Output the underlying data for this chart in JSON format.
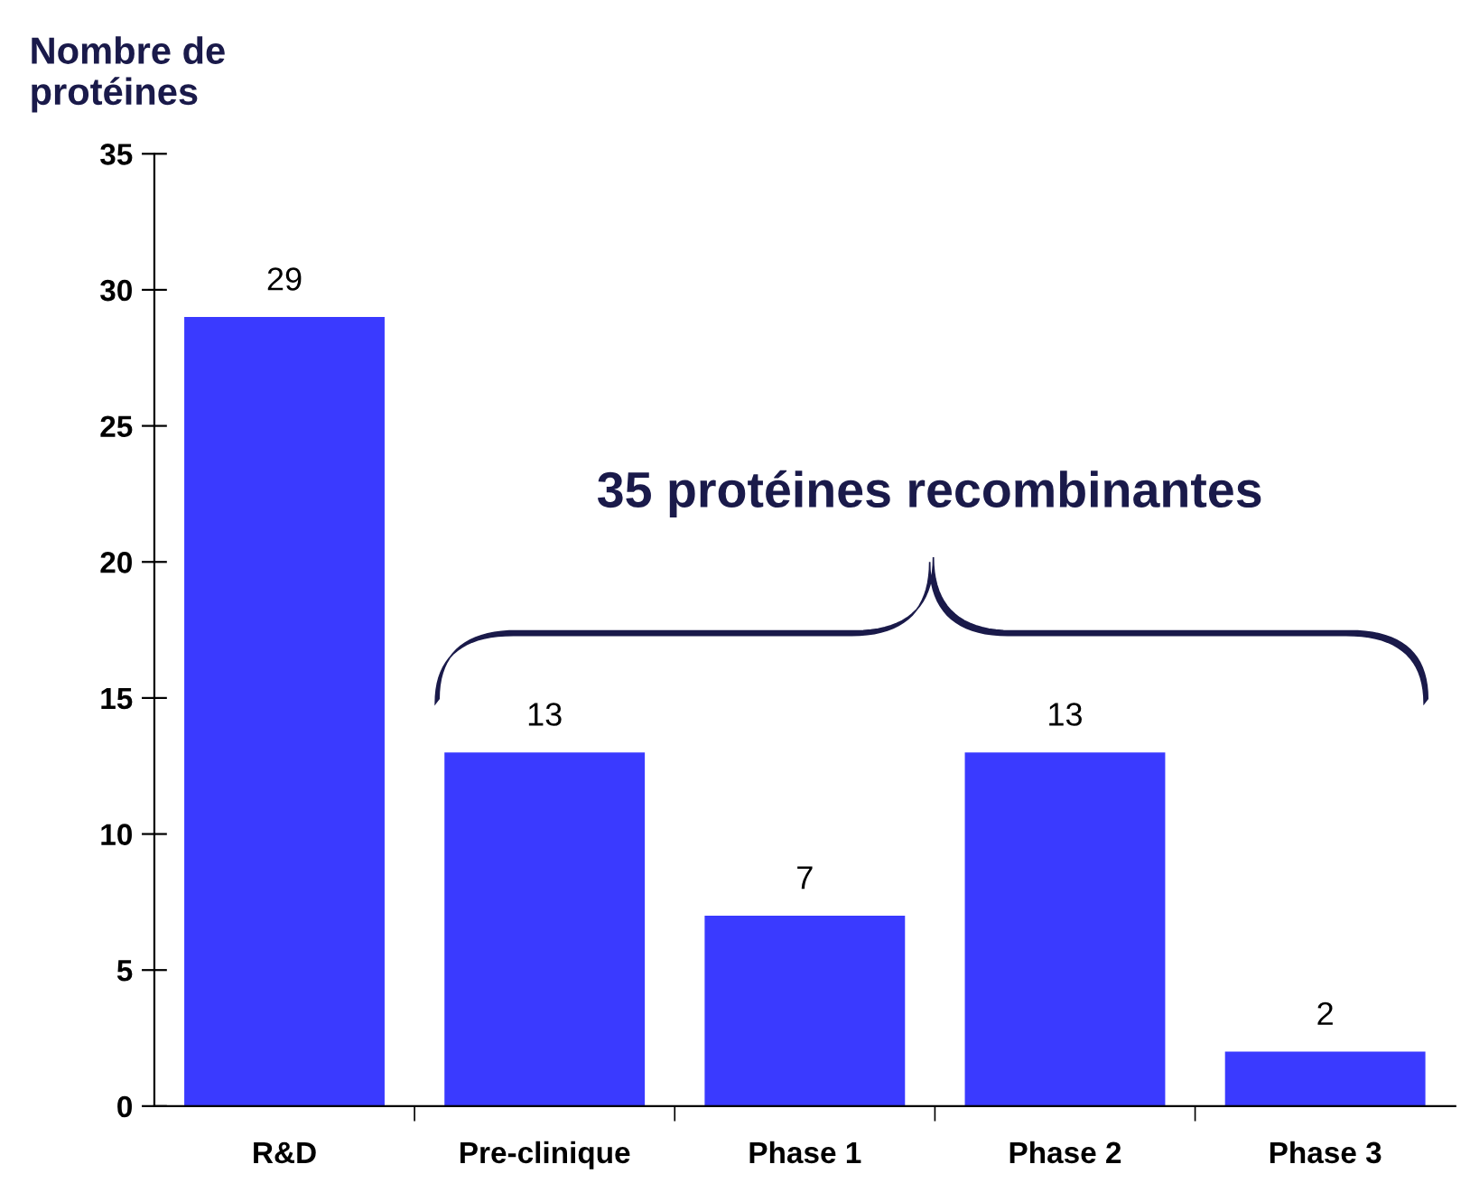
{
  "chart_data": {
    "type": "bar",
    "ylabel": "Nombre de\nprotéines",
    "categories": [
      "R&D",
      "Pre-clinique",
      "Phase 1",
      "Phase 2",
      "Phase 3"
    ],
    "values": [
      29,
      13,
      7,
      13,
      2
    ],
    "color": "#3a3aff",
    "data_labels": true,
    "ylim": [
      0,
      35
    ],
    "yticks": [
      0,
      5,
      10,
      15,
      20,
      25,
      30,
      35
    ],
    "grid": false,
    "annotations": [
      "35 protéines recombinantes"
    ]
  }
}
